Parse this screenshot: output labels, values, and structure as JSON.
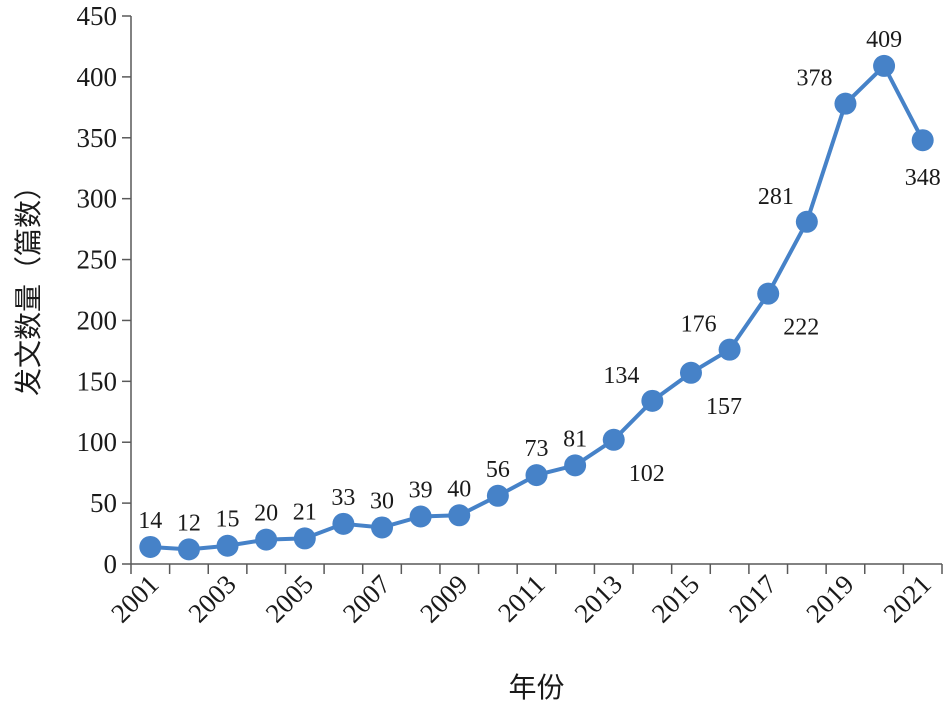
{
  "chart_data": {
    "type": "line",
    "xlabel": "年份",
    "ylabel": "发文数量（篇数）",
    "ylim": [
      0,
      450
    ],
    "yticks": [
      0,
      50,
      100,
      150,
      200,
      250,
      300,
      350,
      400,
      450
    ],
    "x": [
      2001,
      2002,
      2003,
      2004,
      2005,
      2006,
      2007,
      2008,
      2009,
      2010,
      2011,
      2012,
      2013,
      2014,
      2015,
      2016,
      2017,
      2018,
      2019,
      2020,
      2021
    ],
    "xtick_labels": [
      "2001",
      "2003",
      "2005",
      "2007",
      "2009",
      "2011",
      "2013",
      "2015",
      "2017",
      "2019",
      "2021"
    ],
    "values": [
      14,
      12,
      15,
      20,
      21,
      33,
      30,
      39,
      40,
      56,
      73,
      81,
      102,
      134,
      157,
      176,
      222,
      281,
      378,
      409,
      348
    ],
    "label_positions": [
      "above",
      "above",
      "above",
      "above",
      "above",
      "above",
      "above",
      "above",
      "above",
      "above",
      "above",
      "above",
      "below-right",
      "above-left",
      "below-right",
      "above-left",
      "below-right",
      "above-left",
      "above-left",
      "above",
      "below"
    ],
    "color": "#4682c8",
    "grid": false,
    "legend": "none"
  }
}
